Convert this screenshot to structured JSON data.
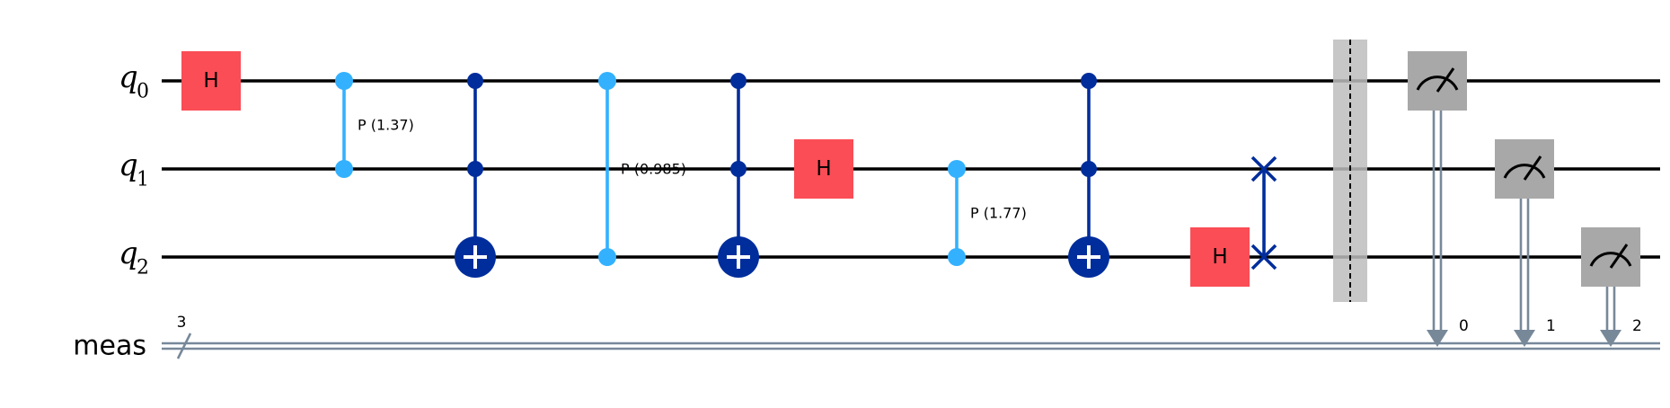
{
  "chart_data": {
    "type": "quantum-circuit",
    "qubits": [
      {
        "name": "q",
        "index": "0"
      },
      {
        "name": "q",
        "index": "1"
      },
      {
        "name": "q",
        "index": "2"
      }
    ],
    "classical_register": {
      "name": "meas",
      "size": "3"
    },
    "gates": [
      {
        "type": "h",
        "label": "H",
        "qubit": 0,
        "column": 0
      },
      {
        "type": "cp",
        "label": "P (1.37)",
        "qubits": [
          0,
          1
        ],
        "column": 1
      },
      {
        "type": "ccx",
        "controls": [
          0,
          1
        ],
        "target": 2,
        "column": 2
      },
      {
        "type": "cp",
        "label": "P (0.985)",
        "qubits": [
          0,
          2
        ],
        "column": 3
      },
      {
        "type": "ccx",
        "controls": [
          0,
          1
        ],
        "target": 2,
        "column": 4
      },
      {
        "type": "h",
        "label": "H",
        "qubit": 1,
        "column": 5
      },
      {
        "type": "cp",
        "label": "P (1.77)",
        "qubits": [
          1,
          2
        ],
        "column": 6
      },
      {
        "type": "ccx",
        "controls": [
          0,
          1
        ],
        "target": 2,
        "column": 7
      },
      {
        "type": "h",
        "label": "H",
        "qubit": 2,
        "column": 8
      },
      {
        "type": "swap",
        "qubits": [
          1,
          2
        ],
        "column": 9
      },
      {
        "type": "barrier",
        "column": 10
      },
      {
        "type": "measure",
        "qubit": 0,
        "clbit": "0",
        "column": 11
      },
      {
        "type": "measure",
        "qubit": 1,
        "clbit": "1",
        "column": 12
      },
      {
        "type": "measure",
        "qubit": 2,
        "clbit": "2",
        "column": 13
      }
    ]
  }
}
